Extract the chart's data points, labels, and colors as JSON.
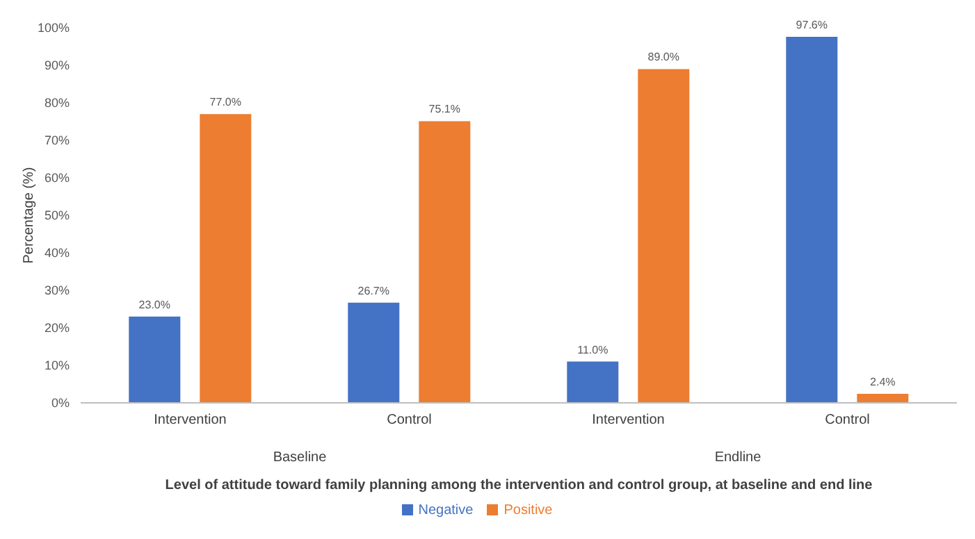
{
  "chart_data": {
    "type": "bar",
    "xlabel": "Level of attitude toward family planning among the intervention and control group, at baseline and end line",
    "ylabel": "Percentage (%)",
    "categories": [
      "Intervention",
      "Control",
      "Intervention",
      "Control"
    ],
    "annotations": [
      "Baseline",
      "Endline"
    ],
    "series": [
      {
        "name": "Negative",
        "color": "#4472c4",
        "values": [
          23.0,
          26.7,
          11.0,
          97.6
        ],
        "value_labels": [
          "23.0%",
          "26.7%",
          "11.0%",
          "97.6%"
        ]
      },
      {
        "name": "Positive",
        "color": "#ed7d31",
        "values": [
          77.0,
          75.1,
          89.0,
          2.4
        ],
        "value_labels": [
          "77.0%",
          "75.1%",
          "89.0%",
          "2.4%"
        ]
      }
    ],
    "ylim": [
      0,
      100
    ],
    "yticks": [
      {
        "value": 0,
        "label": "0%"
      },
      {
        "value": 10,
        "label": "10%"
      },
      {
        "value": 20,
        "label": "20%"
      },
      {
        "value": 30,
        "label": "30%"
      },
      {
        "value": 40,
        "label": "40%"
      },
      {
        "value": 50,
        "label": "50%"
      },
      {
        "value": 60,
        "label": "60%"
      },
      {
        "value": 70,
        "label": "70%"
      },
      {
        "value": 80,
        "label": "80%"
      },
      {
        "value": 90,
        "label": "90%"
      },
      {
        "value": 100,
        "label": "100%"
      }
    ],
    "grid": false,
    "legend": "bottom"
  }
}
